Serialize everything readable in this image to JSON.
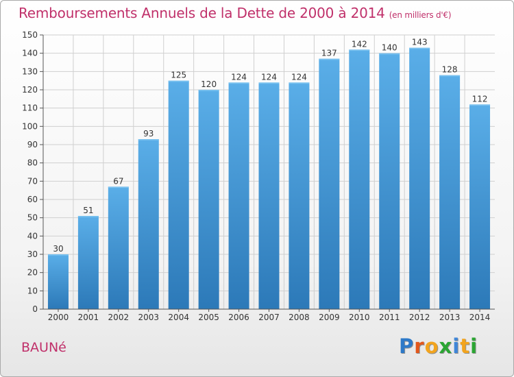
{
  "header": {
    "title": "Remboursements Annuels de la Dette de 2000 à 2014",
    "unit": "(en milliers d'€)"
  },
  "footer": {
    "commune": "BAUNé",
    "logo": {
      "letters": [
        "P",
        "r",
        "o",
        "x",
        "i",
        "t",
        "i"
      ],
      "colors": [
        "#2d79c8",
        "#e2571c",
        "#f2a41e",
        "#2aa532",
        "#3f86d8",
        "#f2a41e",
        "#2aa532"
      ]
    }
  },
  "colors": {
    "bar_light": "#5aaee8",
    "bar_dark": "#2c79b8",
    "grid": "#cfcfcf",
    "axis": "#555555",
    "title": "#c0306a"
  },
  "chart_data": {
    "type": "bar",
    "title": "Remboursements Annuels de la Dette de 2000 à 2014",
    "xlabel": "",
    "ylabel": "",
    "categories": [
      "2000",
      "2001",
      "2002",
      "2003",
      "2004",
      "2005",
      "2006",
      "2007",
      "2008",
      "2009",
      "2010",
      "2011",
      "2012",
      "2013",
      "2014"
    ],
    "values": [
      30,
      51,
      67,
      93,
      125,
      120,
      124,
      124,
      124,
      137,
      142,
      140,
      143,
      128,
      112
    ],
    "ylim": [
      0,
      150
    ],
    "yticks": [
      0,
      10,
      20,
      30,
      40,
      50,
      60,
      70,
      80,
      90,
      100,
      110,
      120,
      130,
      140,
      150
    ],
    "grid": true
  }
}
